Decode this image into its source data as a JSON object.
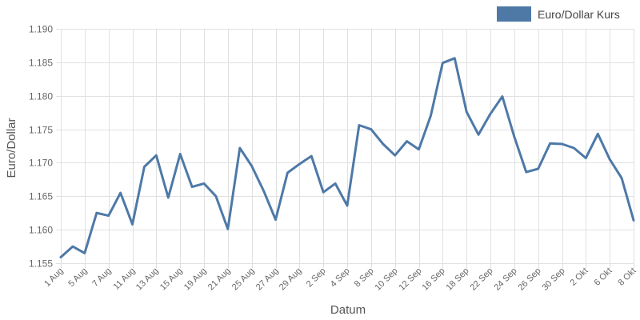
{
  "chart_data": {
    "type": "line",
    "xlabel": "Datum",
    "ylabel": "Euro/Dollar",
    "ylim": [
      1.155,
      1.19
    ],
    "y_ticks": [
      "1.155",
      "1.160",
      "1.165",
      "1.170",
      "1.175",
      "1.180",
      "1.185",
      "1.190"
    ],
    "grid": true,
    "legend_position": "top-right",
    "x_tick_labels": [
      "1 Aug",
      "5 Aug",
      "7 Aug",
      "11 Aug",
      "13 Aug",
      "15 Aug",
      "19 Aug",
      "21 Aug",
      "25 Aug",
      "27 Aug",
      "29 Aug",
      "2 Sep",
      "4 Sep",
      "8 Sep",
      "10 Sep",
      "12 Sep",
      "16 Sep",
      "18 Sep",
      "22 Sep",
      "24 Sep",
      "26 Sep",
      "30 Sep",
      "2 Okt",
      "6 Okt",
      "8 Okt"
    ],
    "series": [
      {
        "name": "Euro/Dollar Kurs",
        "color": "#4e79a7",
        "values": [
          1.1559,
          1.1575,
          1.1565,
          1.1625,
          1.1621,
          1.1655,
          1.1608,
          1.1694,
          1.1711,
          1.1648,
          1.1713,
          1.1664,
          1.1669,
          1.165,
          1.1601,
          1.1722,
          1.1695,
          1.1658,
          1.1615,
          1.1685,
          1.1698,
          1.171,
          1.1656,
          1.1669,
          1.1636,
          1.1756,
          1.175,
          1.1728,
          1.1711,
          1.1732,
          1.172,
          1.177,
          1.1849,
          1.1856,
          1.1776,
          1.1742,
          1.1773,
          1.1799,
          1.1739,
          1.1686,
          1.1691,
          1.1729,
          1.1728,
          1.1722,
          1.1707,
          1.1743,
          1.1705,
          1.1677,
          1.1614
        ]
      }
    ]
  }
}
